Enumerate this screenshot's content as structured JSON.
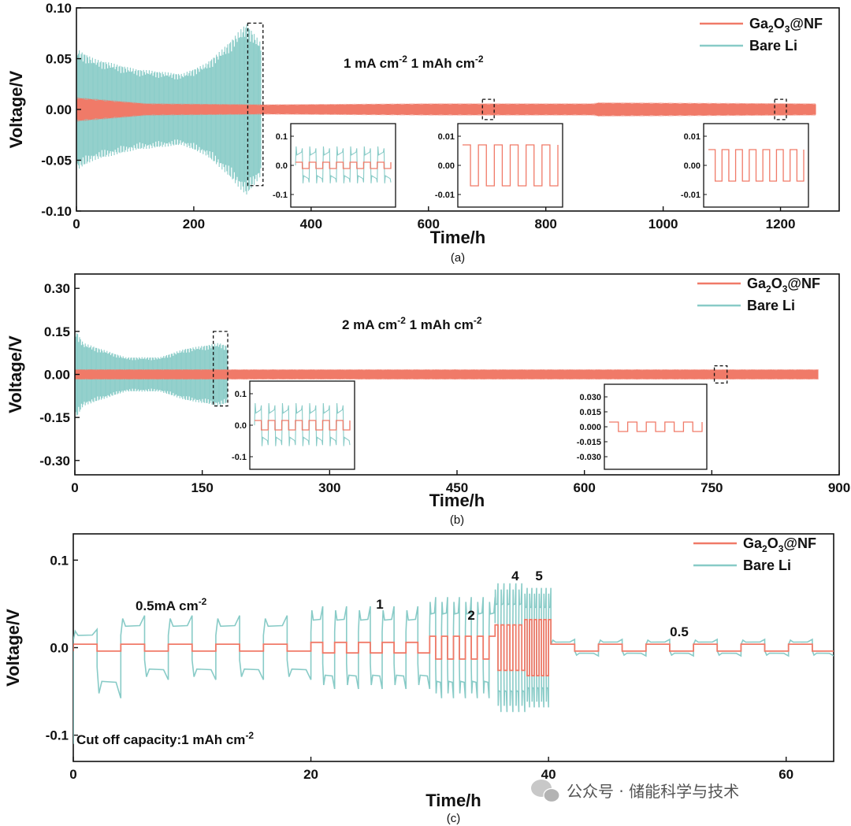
{
  "colors": {
    "ga2o3": "#f07a68",
    "bare_li": "#88cbc7",
    "axis": "#111111"
  },
  "watermark": {
    "icon": "wechat-icon",
    "text": "公众号 · 储能科学与技术"
  },
  "chart_data": [
    {
      "id": "a",
      "type": "line",
      "caption": "(a)",
      "xlabel": "Time/h",
      "ylabel": "Voltage/V",
      "xlim": [
        0,
        1300
      ],
      "ylim": [
        -0.1,
        0.1
      ],
      "xticks": [
        "0",
        "200",
        "400",
        "600",
        "800",
        "1000",
        "1200"
      ],
      "yticks": [
        "-0.10",
        "-0.05",
        "0.00",
        "0.05",
        "0.10"
      ],
      "condition_parts": [
        "1 mA cm",
        "-2",
        " 1 mAh cm",
        "-2"
      ],
      "legend": {
        "position": "top-right",
        "entries": [
          {
            "pre": "Ga",
            "sub1": "2",
            "mid": "O",
            "sub2": "3",
            "post": "@NF",
            "series": "ga2o3"
          },
          {
            "label": "Bare Li",
            "series": "bare_li"
          }
        ]
      },
      "series": [
        {
          "key": "ga2o3",
          "envelope": [
            [
              0,
              0.012
            ],
            [
              120,
              0.006
            ],
            [
              320,
              0.005
            ],
            [
              600,
              0.006
            ],
            [
              880,
              0.006
            ],
            [
              890,
              0.007
            ],
            [
              1260,
              0.006
            ]
          ]
        },
        {
          "key": "bare_li",
          "envelope": [
            [
              0,
              0.06
            ],
            [
              30,
              0.05
            ],
            [
              100,
              0.04
            ],
            [
              180,
              0.035
            ],
            [
              220,
              0.045
            ],
            [
              250,
              0.06
            ],
            [
              290,
              0.085
            ],
            [
              315,
              0.065
            ]
          ]
        }
      ],
      "insets": [
        {
          "yticks": [
            "0.1",
            "0.0",
            "-0.1"
          ],
          "series": [
            "bare_li",
            "ga2o3"
          ],
          "zoom_x": [
            292,
            318
          ]
        },
        {
          "yticks": [
            "0.01",
            "0.00",
            "-0.01"
          ],
          "series": [
            "ga2o3"
          ],
          "zoom_x": [
            692,
            714
          ]
        },
        {
          "yticks": [
            "0.01",
            "0.00",
            "-0.01"
          ],
          "series": [
            "ga2o3"
          ],
          "zoom_x": [
            1190,
            1212
          ]
        }
      ]
    },
    {
      "id": "b",
      "type": "line",
      "caption": "(b)",
      "xlabel": "Time/h",
      "ylabel": "Voltage/V",
      "xlim": [
        0,
        900
      ],
      "ylim": [
        -0.35,
        0.35
      ],
      "xticks": [
        "0",
        "150",
        "300",
        "450",
        "600",
        "750",
        "900"
      ],
      "yticks": [
        "0.30",
        "0.15",
        "0.00",
        "-0.15",
        "-0.30"
      ],
      "condition_parts": [
        "2 mA cm",
        "-2",
        " 1 mAh cm",
        "-2"
      ],
      "legend": {
        "position": "top-right",
        "entries": [
          {
            "pre": "Ga",
            "sub1": "2",
            "mid": "O",
            "sub2": "3",
            "post": "@NF",
            "series": "ga2o3"
          },
          {
            "label": "Bare Li",
            "series": "bare_li"
          }
        ]
      },
      "series": [
        {
          "key": "ga2o3",
          "envelope": [
            [
              0,
              0.018
            ],
            [
              900,
              0.018
            ]
          ]
        },
        {
          "key": "bare_li",
          "envelope": [
            [
              0,
              0.16
            ],
            [
              10,
              0.11
            ],
            [
              60,
              0.06
            ],
            [
              100,
              0.06
            ],
            [
              130,
              0.09
            ],
            [
              170,
              0.11
            ],
            [
              180,
              0.1
            ]
          ]
        }
      ],
      "insets": [
        {
          "yticks": [
            "0.1",
            "0.0",
            "-0.1"
          ],
          "series": [
            "bare_li",
            "ga2o3"
          ],
          "zoom_x": [
            162,
            180
          ]
        },
        {
          "yticks": [
            "0.030",
            "0.015",
            "0.000",
            "-0.015",
            "-0.030"
          ],
          "series": [
            "ga2o3"
          ],
          "zoom_x": [
            752,
            768
          ]
        }
      ]
    },
    {
      "id": "c",
      "type": "line",
      "caption": "(c)",
      "xlabel": "Time/h",
      "ylabel": "Voltage/V",
      "xlim": [
        0,
        64
      ],
      "ylim": [
        -0.13,
        0.13
      ],
      "xticks": [
        "0",
        "20",
        "40",
        "60"
      ],
      "yticks": [
        "0.1",
        "0.0",
        "-0.1"
      ],
      "rate_label_parts": [
        "0.5mA cm",
        "-2"
      ],
      "cutoff_parts": [
        "Cut off capacity:1 mAh cm",
        "-2"
      ],
      "step_labels": [
        {
          "text": "1",
          "x": 25.8
        },
        {
          "text": "2",
          "x": 33.5
        },
        {
          "text": "4",
          "x": 37.2
        },
        {
          "text": "5",
          "x": 39.2
        },
        {
          "text": "0.5",
          "x": 51
        }
      ],
      "legend": {
        "position": "top-right",
        "entries": [
          {
            "pre": "Ga",
            "sub1": "2",
            "mid": "O",
            "sub2": "3",
            "post": "@NF",
            "series": "ga2o3"
          },
          {
            "label": "Bare Li",
            "series": "bare_li"
          }
        ]
      },
      "rate_steps": [
        {
          "rate": 0.5,
          "t_start": 0,
          "t_end": 20,
          "half_cycle_h": 2,
          "ga2o3_v": 0.004,
          "bare_li_v": 0.035
        },
        {
          "rate": 1,
          "t_start": 20,
          "t_end": 30,
          "half_cycle_h": 1,
          "ga2o3_v": 0.006,
          "bare_li_v": 0.045
        },
        {
          "rate": 2,
          "t_start": 30,
          "t_end": 35.5,
          "half_cycle_h": 0.5,
          "ga2o3_v": 0.013,
          "bare_li_v": 0.055
        },
        {
          "rate": 4,
          "t_start": 35.5,
          "t_end": 38,
          "half_cycle_h": 0.25,
          "ga2o3_v": 0.026,
          "bare_li_v": 0.07
        },
        {
          "rate": 5,
          "t_start": 38,
          "t_end": 40.2,
          "half_cycle_h": 0.2,
          "ga2o3_v": 0.032,
          "bare_li_v": 0.065
        },
        {
          "rate": 0.5,
          "t_start": 40.2,
          "t_end": 64,
          "half_cycle_h": 2,
          "ga2o3_v": 0.004,
          "bare_li_v": 0.009
        }
      ]
    }
  ]
}
